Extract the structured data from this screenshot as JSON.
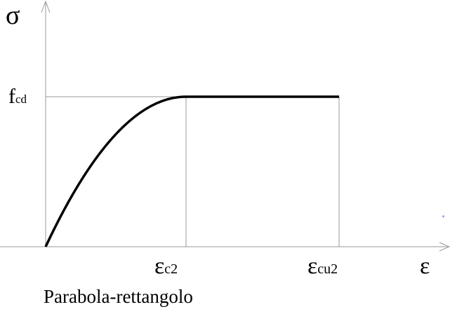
{
  "y_axis": {
    "label": "σ"
  },
  "x_axis": {
    "label": "ε"
  },
  "level": {
    "symbol": "f",
    "subscript": "cd"
  },
  "points": [
    {
      "symbol": "ε",
      "subscript": "c2"
    },
    {
      "symbol": "ε",
      "subscript": "cu2"
    }
  ],
  "caption": "Parabola-rettangolo"
}
